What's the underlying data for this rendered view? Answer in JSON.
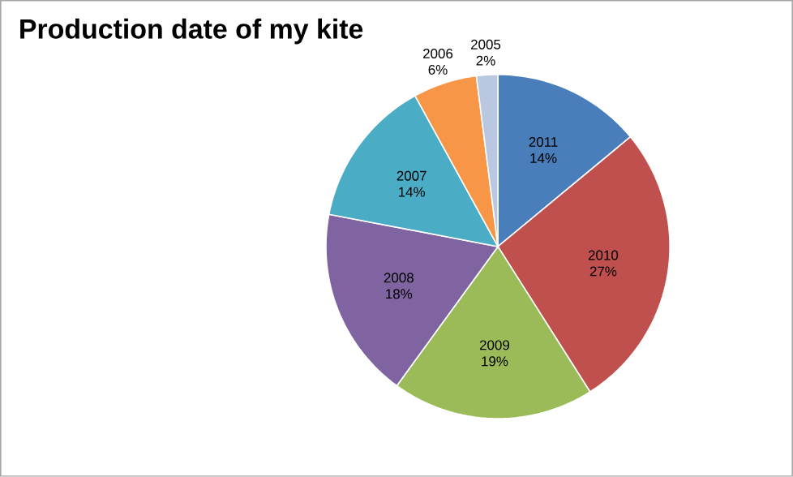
{
  "chart_data": {
    "type": "pie",
    "title": "Production date of my kite",
    "categories": [
      "2011",
      "2010",
      "2009",
      "2008",
      "2007",
      "2006",
      "2005"
    ],
    "values": [
      14,
      27,
      19,
      18,
      14,
      6,
      2
    ],
    "value_labels": [
      "14%",
      "27%",
      "19%",
      "18%",
      "14%",
      "6%",
      "2%"
    ],
    "colors": [
      "#4a7ebb",
      "#c0504d",
      "#9bbb59",
      "#8064a2",
      "#4bacc6",
      "#f79646",
      "#b9c7e0"
    ],
    "legend": false
  }
}
